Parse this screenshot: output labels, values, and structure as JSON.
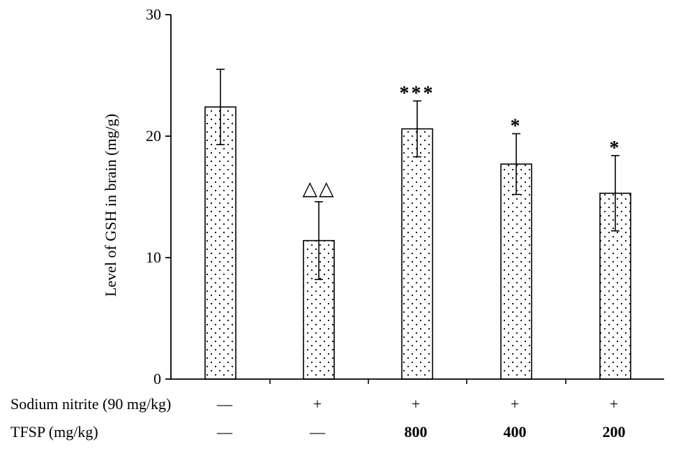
{
  "chart_data": {
    "type": "bar",
    "title": "",
    "xlabel": "",
    "ylabel": "Level of GSH in brain (mg/g)",
    "ylim": [
      0,
      30
    ],
    "yticks": [
      0,
      10,
      20,
      30
    ],
    "grid": false,
    "legend": "none",
    "bar_fill": "dotted",
    "categories": [
      "group 1",
      "group 2",
      "group 3",
      "group 4",
      "group 5"
    ],
    "values": [
      22.4,
      11.4,
      20.6,
      17.7,
      15.3
    ],
    "error_bars": [
      3.1,
      3.2,
      2.3,
      2.5,
      3.1
    ],
    "annotations": [
      "",
      "△△",
      "***",
      "*",
      "*"
    ],
    "table_rows": [
      {
        "label": "Sodium nitrite (90 mg/kg)",
        "cells": [
          "—",
          "+",
          "+",
          "+",
          "+"
        ]
      },
      {
        "label": "TFSP (mg/kg)",
        "cells": [
          "—",
          "—",
          "800",
          "400",
          "200"
        ]
      }
    ]
  }
}
